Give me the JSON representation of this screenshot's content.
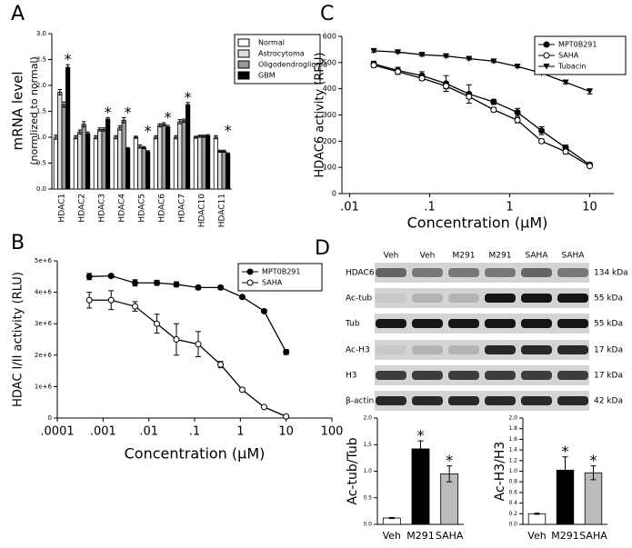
{
  "chart_data": [
    {
      "type": "bar",
      "label": "A",
      "ylabel": "mRNA level",
      "ylabel2": "(normlized to normal)",
      "categories": [
        "HDAC1",
        "HDAC2",
        "HDAC3",
        "HDAC4",
        "HDAC5",
        "HDAC6",
        "HDAC7",
        "HDAC10",
        "HDAC11"
      ],
      "series": [
        {
          "name": "Normal",
          "color": "#ffffff",
          "values": [
            1.0,
            1.0,
            1.0,
            1.0,
            1.0,
            1.0,
            1.0,
            1.0,
            1.0
          ],
          "errors": [
            0.04,
            0.03,
            0.03,
            0.03,
            0.02,
            0.03,
            0.03,
            0.02,
            0.03
          ]
        },
        {
          "name": "Astrocytoma",
          "color": "#dddddd",
          "values": [
            1.87,
            1.1,
            1.15,
            1.18,
            0.82,
            1.23,
            1.3,
            1.02,
            0.73
          ],
          "errors": [
            0.05,
            0.04,
            0.03,
            0.04,
            0.03,
            0.03,
            0.04,
            0.02,
            0.02
          ]
        },
        {
          "name": "Oligodendroglioma",
          "color": "#999999",
          "values": [
            1.63,
            1.25,
            1.15,
            1.33,
            0.8,
            1.25,
            1.32,
            1.02,
            0.73
          ],
          "errors": [
            0.05,
            0.05,
            0.03,
            0.05,
            0.02,
            0.03,
            0.03,
            0.02,
            0.02
          ]
        },
        {
          "name": "GBM",
          "color": "#000000",
          "values": [
            2.35,
            1.07,
            1.35,
            0.78,
            0.72,
            1.2,
            1.63,
            1.03,
            0.68
          ],
          "errors": [
            0.05,
            0.03,
            0.03,
            0.02,
            0.02,
            0.03,
            0.04,
            0.02,
            0.02
          ]
        }
      ],
      "ylim": [
        0,
        3
      ],
      "yticks": [
        {
          "value": 0,
          "label": "0.0"
        },
        0.5,
        {
          "value": 1,
          "label": "1.0"
        },
        1.5,
        {
          "value": 2,
          "label": "2.0"
        },
        2.5,
        {
          "value": 3,
          "label": "3.0"
        }
      ],
      "legend": "upper right",
      "annotations": [
        {
          "text": "*",
          "category": "HDAC1"
        },
        {
          "text": "*",
          "category": "HDAC3"
        },
        {
          "text": "*",
          "category": "HDAC4"
        },
        {
          "text": "*",
          "category": "HDAC5"
        },
        {
          "text": "*",
          "category": "HDAC6"
        },
        {
          "text": "*",
          "category": "HDAC7"
        },
        {
          "text": "*",
          "category": "HDAC11"
        }
      ]
    },
    {
      "type": "line",
      "label": "B",
      "xlabel": "Concentration (μM)",
      "ylabel": "HDAC I/II activity (RLU)",
      "xscale": "log",
      "x": [
        0.0005,
        0.0015,
        0.005,
        0.015,
        0.04,
        0.12,
        0.37,
        1.1,
        3.3,
        10
      ],
      "series": [
        {
          "name": "MPT0B291",
          "color": "#000000",
          "marker": "circle-filled",
          "values": [
            4500000,
            4520000,
            4300000,
            4300000,
            4250000,
            4150000,
            4150000,
            3850000,
            3400000,
            2100000
          ],
          "errors": [
            100000,
            50000,
            100000,
            80000,
            80000,
            60000,
            60000,
            50000,
            50000,
            80000
          ]
        },
        {
          "name": "SAHA",
          "color": "#000000",
          "marker": "circle-open",
          "values": [
            3750000,
            3750000,
            3550000,
            3000000,
            2500000,
            2350000,
            1700000,
            900000,
            350000,
            50000
          ],
          "errors": [
            250000,
            300000,
            150000,
            300000,
            500000,
            400000,
            100000,
            50000,
            30000,
            20000
          ]
        }
      ],
      "xlim": [
        0.0001,
        100
      ],
      "xticks": [
        {
          "value": 0.0001,
          "label": ".0001"
        },
        {
          "value": 0.001,
          "label": ".001"
        },
        {
          "value": 0.01,
          "label": ".01"
        },
        {
          "value": 0.1,
          "label": ".1"
        },
        1,
        10,
        100
      ],
      "ylim": [
        0,
        5000000
      ],
      "yticks": [
        0,
        {
          "value": 1000000,
          "label": "1e+6"
        },
        {
          "value": 2000000,
          "label": "2e+6"
        },
        {
          "value": 3000000,
          "label": "3e+6"
        },
        {
          "value": 4000000,
          "label": "4e+6"
        },
        {
          "value": 5000000,
          "label": "5e+6"
        }
      ],
      "legend": "upper right"
    },
    {
      "type": "line",
      "label": "C",
      "xlabel": "Concentration (μM)",
      "ylabel": "HDAC6 activity (RFU)",
      "xscale": "log",
      "x": [
        0.02,
        0.04,
        0.08,
        0.16,
        0.31,
        0.63,
        1.25,
        2.5,
        5,
        10
      ],
      "series": [
        {
          "name": "MPT0B291",
          "color": "#000000",
          "marker": "circle-filled",
          "values": [
            495,
            470,
            450,
            420,
            380,
            350,
            310,
            240,
            175,
            110
          ],
          "errors": [
            10,
            12,
            15,
            30,
            35,
            10,
            15,
            15,
            10,
            8
          ]
        },
        {
          "name": "SAHA",
          "color": "#000000",
          "marker": "circle-open",
          "values": [
            490,
            465,
            440,
            410,
            370,
            320,
            280,
            200,
            160,
            105
          ],
          "errors": [
            8,
            10,
            8,
            10,
            8,
            8,
            10,
            8,
            8,
            6
          ]
        },
        {
          "name": "Tubacin",
          "color": "#000000",
          "marker": "triangle-down",
          "values": [
            545,
            540,
            530,
            525,
            515,
            505,
            485,
            460,
            425,
            390
          ],
          "errors": [
            5,
            5,
            5,
            5,
            5,
            5,
            5,
            5,
            6,
            10
          ]
        }
      ],
      "xlim": [
        0.008,
        20
      ],
      "xticks": [
        {
          "value": 0.01,
          "label": ".01"
        },
        {
          "value": 0.1,
          "label": ".1"
        },
        1,
        10
      ],
      "ylim": [
        0,
        600
      ],
      "yticks": [
        0,
        100,
        200,
        300,
        400,
        500,
        600
      ],
      "legend": "upper right"
    },
    {
      "type": "blot",
      "label": "D",
      "lanes": [
        "Veh",
        "Veh",
        "M291",
        "M291",
        "SAHA",
        "SAHA"
      ],
      "rows": [
        {
          "name": "HDAC6",
          "size": "134 kDa"
        },
        {
          "name": "Ac-tub",
          "size": "55 kDa"
        },
        {
          "name": "Tub",
          "size": "55 kDa"
        },
        {
          "name": "Ac-H3",
          "size": "17 kDa"
        },
        {
          "name": "H3",
          "size": "17 kDa"
        },
        {
          "name": "β-actin",
          "size": "42 kDa"
        }
      ]
    },
    {
      "type": "bar",
      "ylabel": "Ac-tub/Tub",
      "categories": [
        "Veh",
        "M291",
        "SAHA"
      ],
      "values": [
        0.12,
        1.42,
        0.95
      ],
      "errors": [
        0.01,
        0.15,
        0.15
      ],
      "colors": [
        "#ffffff",
        "#000000",
        "#bbbbbb"
      ],
      "ylim": [
        0,
        2
      ],
      "yticks": [
        {
          "value": 0,
          "label": "0.0"
        },
        0.5,
        {
          "value": 1,
          "label": "1.0"
        },
        1.5,
        {
          "value": 2,
          "label": "2.0"
        }
      ],
      "annotations": [
        {
          "text": "*",
          "category": "M291"
        },
        {
          "text": "*",
          "category": "SAHA"
        }
      ]
    },
    {
      "type": "bar",
      "ylabel": "Ac-H3/H3",
      "categories": [
        "Veh",
        "M291",
        "SAHA"
      ],
      "values": [
        0.2,
        1.02,
        0.97
      ],
      "errors": [
        0.01,
        0.25,
        0.13
      ],
      "colors": [
        "#ffffff",
        "#000000",
        "#bbbbbb"
      ],
      "ylim": [
        0,
        2
      ],
      "yticks": [
        {
          "value": 0,
          "label": "0.0"
        },
        0.2,
        0.4,
        0.6,
        0.8,
        {
          "value": 1,
          "label": "1.0"
        },
        1.2,
        1.4,
        1.6,
        1.8,
        {
          "value": 2,
          "label": "2.0"
        }
      ],
      "annotations": [
        {
          "text": "*",
          "category": "M291"
        },
        {
          "text": "*",
          "category": "SAHA"
        }
      ]
    }
  ]
}
